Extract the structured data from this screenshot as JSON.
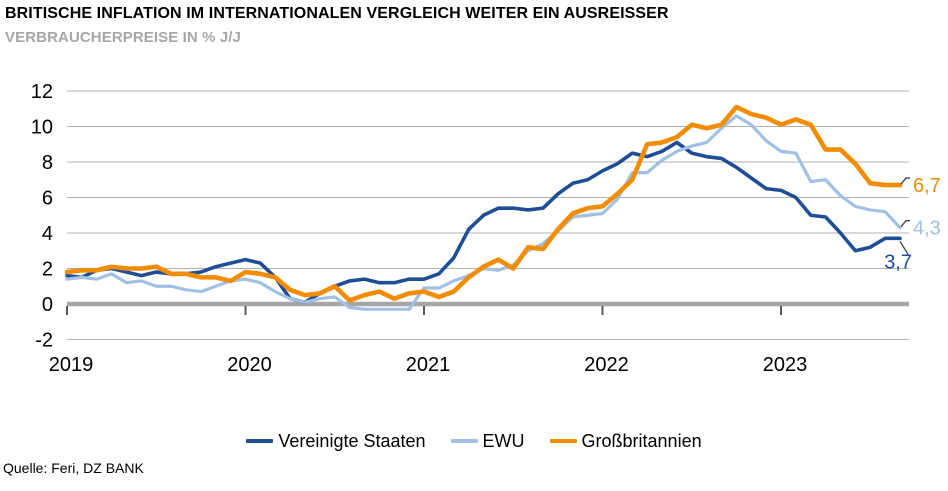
{
  "header": {
    "title": "BRITISCHE INFLATION IM INTERNATIONALEN VERGLEICH WEITER EIN AUSREISSER",
    "subtitle": "VERBRAUCHERPREISE IN % J/J"
  },
  "source": "Quelle: Feri, DZ BANK",
  "colors": {
    "us_line": "#1F4E96",
    "ewu_line": "#A0C1E4",
    "uk_line": "#F28C00",
    "gridline": "#B0B0B0",
    "zero_axis": "#A6A6A6",
    "tick_mark": "#595959",
    "axis_text": "#000000",
    "subtitle_text": "#A6A6A6"
  },
  "chart_data": {
    "type": "line",
    "title": "BRITISCHE INFLATION IM INTERNATIONALEN VERGLEICH WEITER EIN AUSREISSER",
    "subtitle": "VERBRAUCHERPREISE IN % J/J",
    "ylabel": "",
    "xlabel": "",
    "ylim": [
      -2,
      12
    ],
    "y_ticks": [
      12,
      10,
      8,
      6,
      4,
      2,
      0,
      -2
    ],
    "x_tick_labels": [
      "2019",
      "2020",
      "2021",
      "2022",
      "2023"
    ],
    "x_frequency": "monthly",
    "x_range": "Jan 2019 - Sep 2023",
    "grid": true,
    "legend_position": "bottom",
    "series": [
      {
        "name": "Vereinigte Staaten",
        "color": "#1F4E96",
        "end_label": "3,7",
        "values": [
          1.6,
          1.5,
          1.9,
          2.0,
          1.8,
          1.6,
          1.8,
          1.7,
          1.7,
          1.8,
          2.1,
          2.3,
          2.5,
          2.3,
          1.5,
          0.3,
          0.1,
          0.6,
          1.0,
          1.3,
          1.4,
          1.2,
          1.2,
          1.4,
          1.4,
          1.7,
          2.6,
          4.2,
          5.0,
          5.4,
          5.4,
          5.3,
          5.4,
          6.2,
          6.8,
          7.0,
          7.5,
          7.9,
          8.5,
          8.3,
          8.6,
          9.1,
          8.5,
          8.3,
          8.2,
          7.7,
          7.1,
          6.5,
          6.4,
          6.0,
          5.0,
          4.9,
          4.0,
          3.0,
          3.2,
          3.7,
          3.7
        ]
      },
      {
        "name": "EWU",
        "color": "#A0C1E4",
        "end_label": "4,3",
        "values": [
          1.4,
          1.5,
          1.4,
          1.7,
          1.2,
          1.3,
          1.0,
          1.0,
          0.8,
          0.7,
          1.0,
          1.3,
          1.4,
          1.2,
          0.7,
          0.3,
          0.1,
          0.3,
          0.4,
          -0.2,
          -0.3,
          -0.3,
          -0.3,
          -0.3,
          0.9,
          0.9,
          1.3,
          1.6,
          2.0,
          1.9,
          2.2,
          3.0,
          3.4,
          4.1,
          4.9,
          5.0,
          5.1,
          5.9,
          7.4,
          7.4,
          8.1,
          8.6,
          8.9,
          9.1,
          9.9,
          10.6,
          10.1,
          9.2,
          8.6,
          8.5,
          6.9,
          7.0,
          6.1,
          5.5,
          5.3,
          5.2,
          4.3
        ]
      },
      {
        "name": "Großbritannien",
        "color": "#F28C00",
        "end_label": "6,7",
        "values": [
          1.8,
          1.9,
          1.9,
          2.1,
          2.0,
          2.0,
          2.1,
          1.7,
          1.7,
          1.5,
          1.5,
          1.3,
          1.8,
          1.7,
          1.5,
          0.8,
          0.5,
          0.6,
          1.0,
          0.2,
          0.5,
          0.7,
          0.3,
          0.6,
          0.7,
          0.4,
          0.7,
          1.5,
          2.1,
          2.5,
          2.0,
          3.2,
          3.1,
          4.2,
          5.1,
          5.4,
          5.5,
          6.2,
          7.0,
          9.0,
          9.1,
          9.4,
          10.1,
          9.9,
          10.1,
          11.1,
          10.7,
          10.5,
          10.1,
          10.4,
          10.1,
          8.7,
          8.7,
          7.9,
          6.8,
          6.7,
          6.7
        ]
      }
    ]
  }
}
